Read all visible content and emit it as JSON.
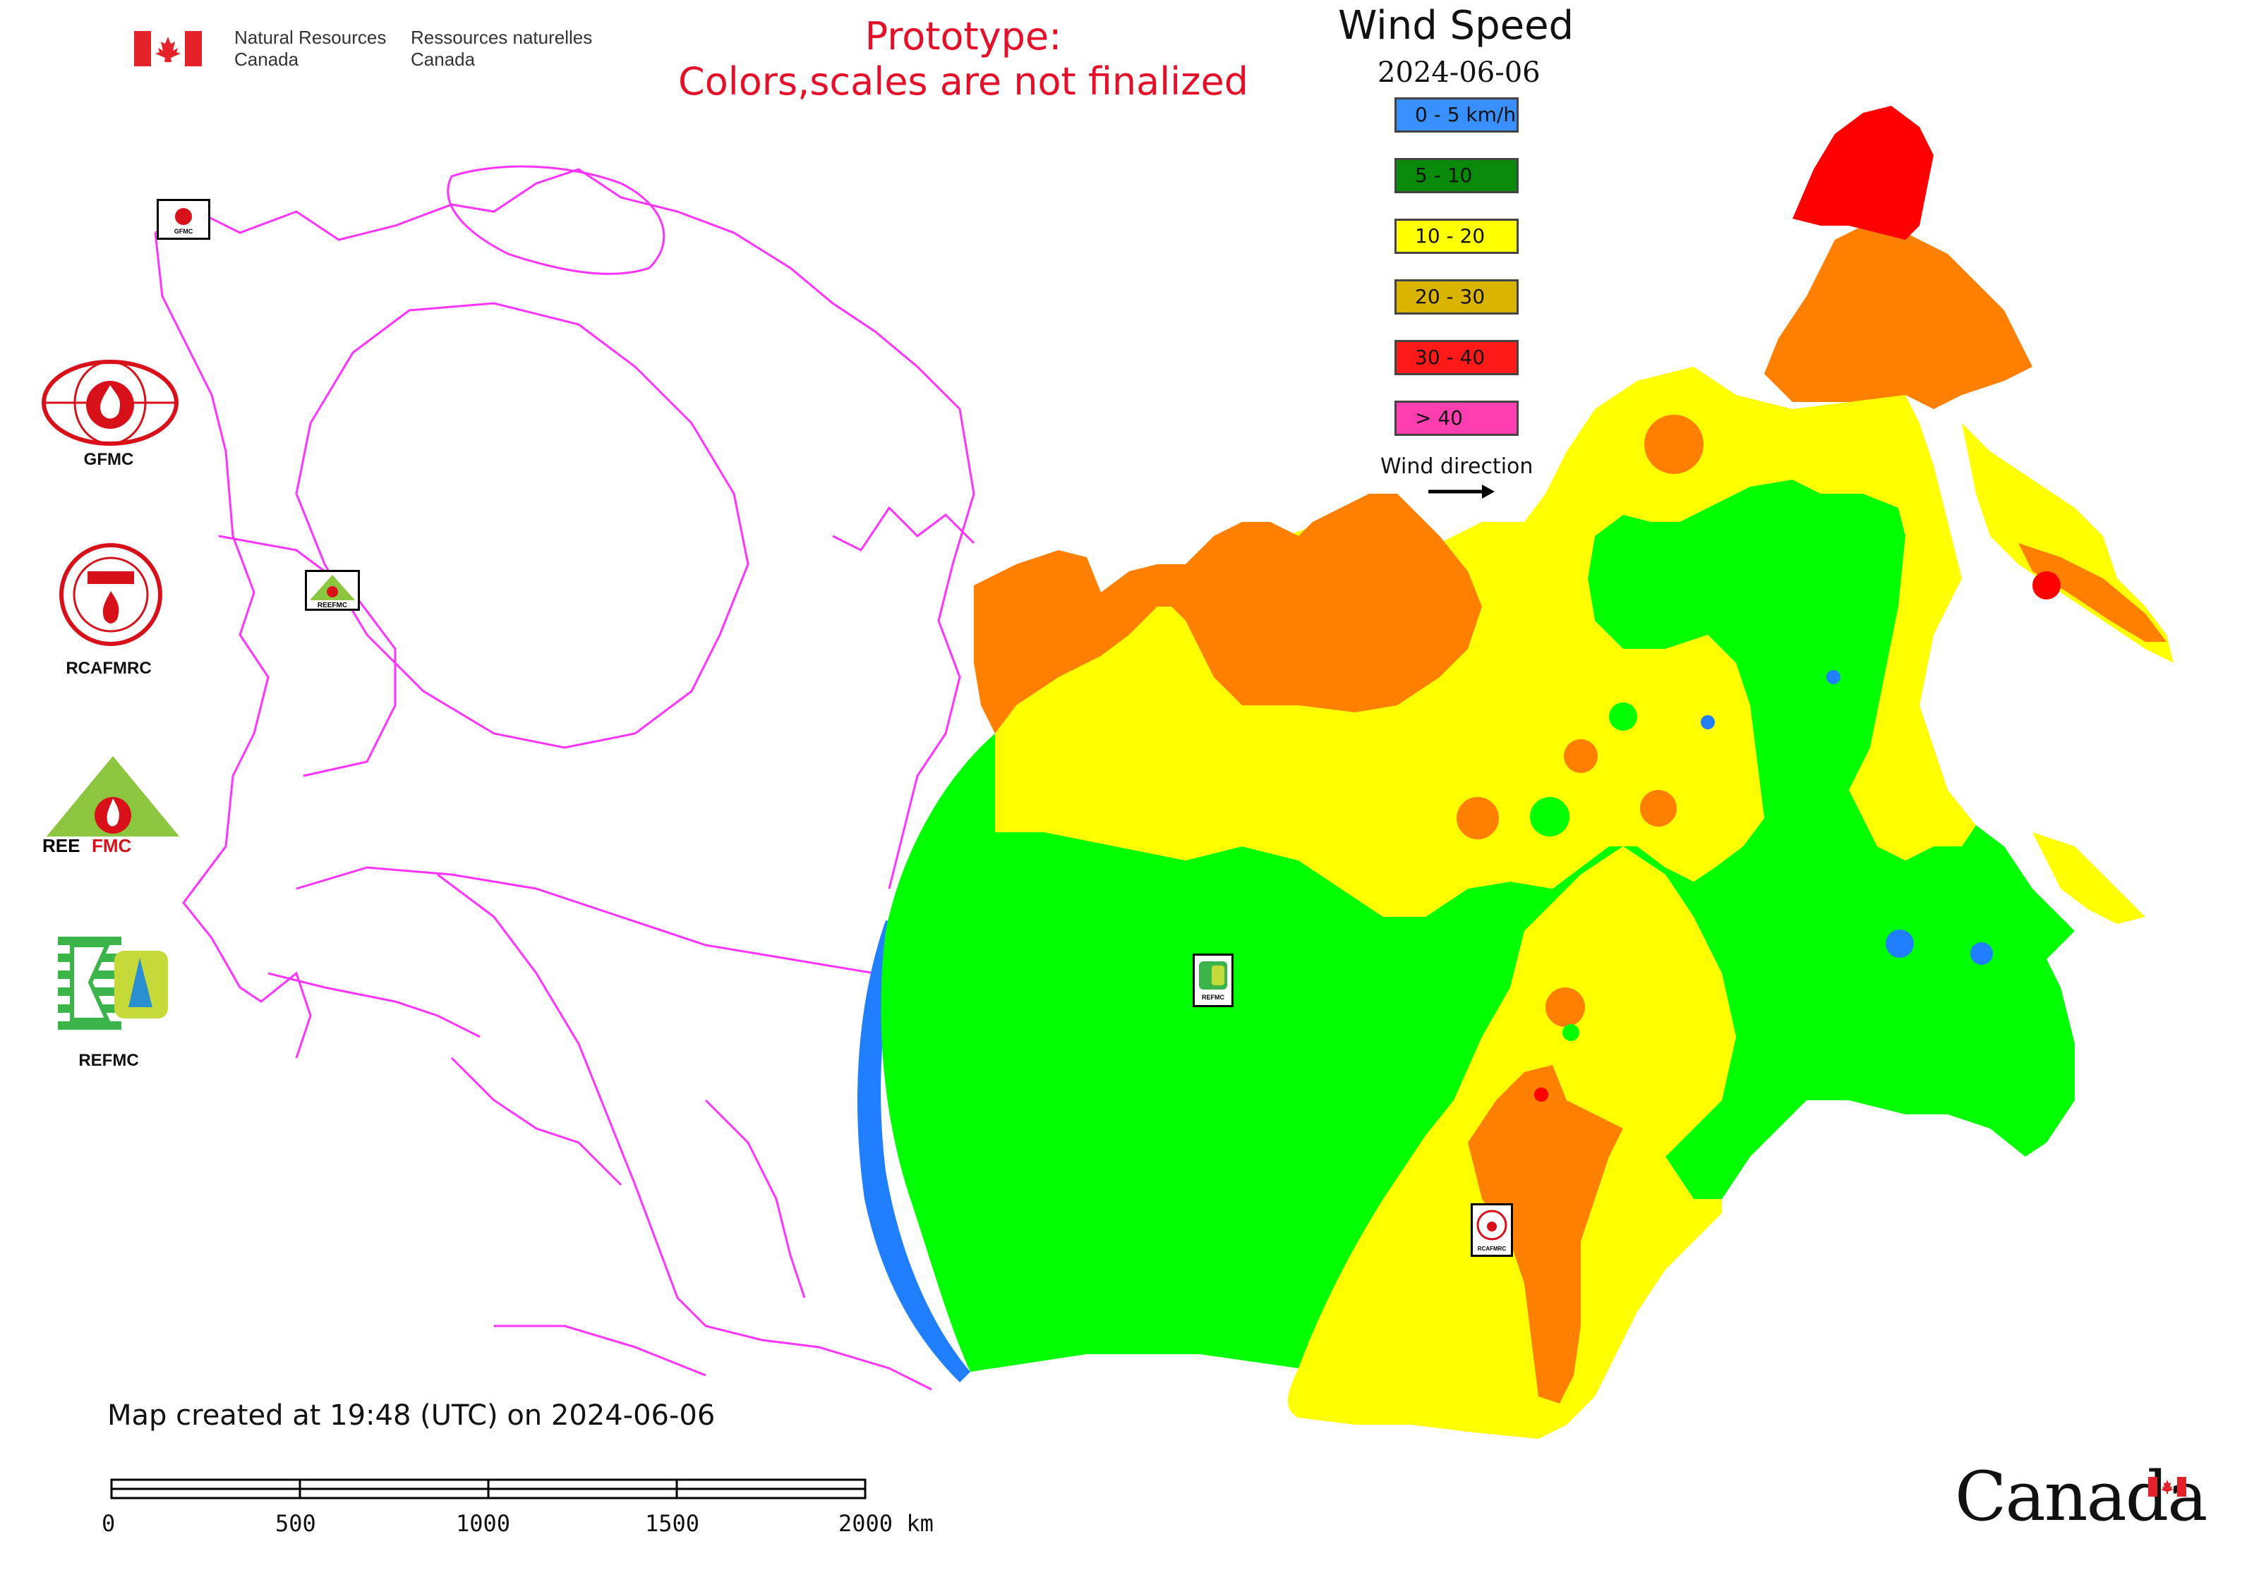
{
  "header": {
    "dept_en_line1": "Natural Resources",
    "dept_en_line2": "Canada",
    "dept_fr_line1": "Ressources naturelles",
    "dept_fr_line2": "Canada",
    "prototype_line1": "Prototype:",
    "prototype_line2": "Colors,scales are not finalized"
  },
  "map_title": "Wind Speed",
  "map_date": "2024-06-06",
  "legend": {
    "items": [
      {
        "label": "0 - 5 km/h",
        "color": "#3a8fff"
      },
      {
        "label": "5 - 10",
        "color": "#0a8a0a"
      },
      {
        "label": "10 - 20",
        "color": "#ffff00"
      },
      {
        "label": "20 - 30",
        "color": "#d8b400"
      },
      {
        "label": "30 - 40",
        "color": "#ff1a1a"
      },
      {
        "label": "> 40",
        "color": "#ff3fb0"
      }
    ],
    "wind_direction_label": "Wind direction"
  },
  "organizations": [
    {
      "name": "GFMC"
    },
    {
      "name": "RCAFMRC"
    },
    {
      "name": "REEFMC"
    },
    {
      "name": "REFMC"
    }
  ],
  "map_marker_labels": {
    "gfmc": "GFMC",
    "reefmc": "REEFMC",
    "refmc": "REFMC",
    "rcafmrc": "RCAFMRC"
  },
  "footer": {
    "created_text": "Map created at 19:48 (UTC) on 2024-06-06"
  },
  "scale_bar": {
    "ticks": [
      "0",
      "500",
      "1000",
      "1500",
      "2000 km"
    ]
  },
  "wordmark": "Canada",
  "colors": {
    "boundary": "#ff33ff",
    "zone_blue": "#1f7fff",
    "zone_green": "#00ff00",
    "zone_yellow": "#ffff00",
    "zone_orange": "#ff8000",
    "zone_red": "#ff0000",
    "canada_flag_red": "#e4222a"
  }
}
